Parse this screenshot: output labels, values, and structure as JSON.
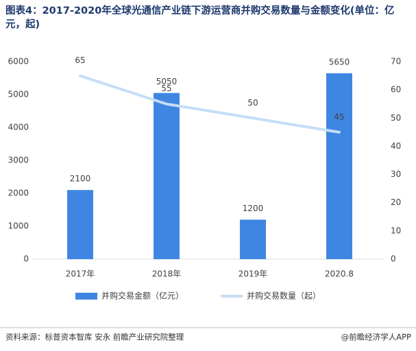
{
  "chart_data": {
    "type": "combo",
    "title": "图表4：2017-2020年全球光通信产业链下游运营商并购交易数量与金额变化(单位：亿元，起)",
    "categories": [
      "2017年",
      "2018年",
      "2019年",
      "2020.8"
    ],
    "series": [
      {
        "name": "并购交易金额（亿元）",
        "type": "bar",
        "color": "#3f86e3",
        "values": [
          2100,
          5050,
          1200,
          5650
        ]
      },
      {
        "name": "并购交易数量（起）",
        "type": "line",
        "axis": "y2",
        "color": "#c6ddf6",
        "values": [
          65,
          55,
          50,
          45
        ]
      }
    ],
    "ylim": [
      0,
      6000
    ],
    "yticks": [
      0,
      1000,
      2000,
      3000,
      4000,
      5000,
      6000
    ],
    "y2lim": [
      0,
      70
    ],
    "y2ticks": [
      0,
      10,
      20,
      30,
      40,
      50,
      60,
      70
    ],
    "grid": false,
    "source": "资料来源：标普资本智库 安永 前瞻产业研究院整理",
    "credit": "@前瞻经济学人APP"
  }
}
